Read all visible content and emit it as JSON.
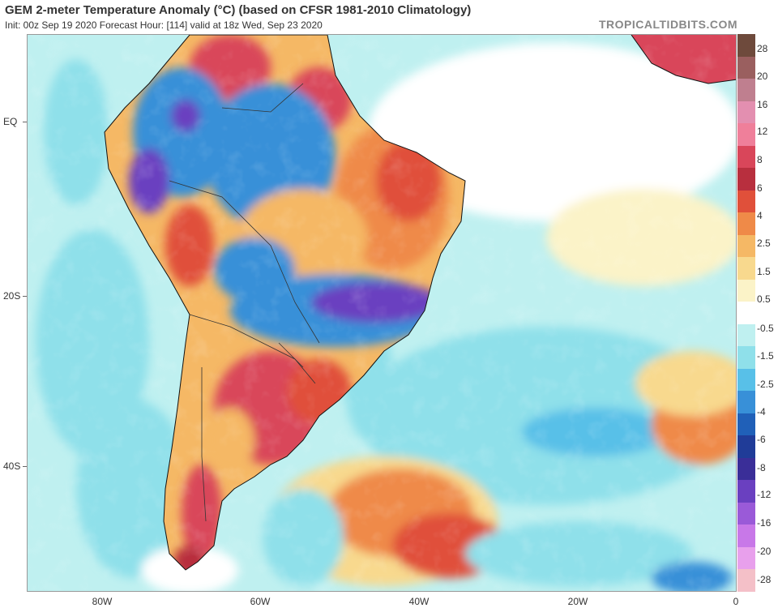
{
  "header": {
    "title": "GEM 2-meter Temperature Anomaly (°C) (based on CFSR 1981-2010 Climatology)",
    "subtitle": "Init: 00z Sep 19 2020   Forecast Hour: [114]   valid at 18z Wed, Sep 23 2020",
    "brand": "TROPICALTIDBITS.COM"
  },
  "axes": {
    "lat_labels": [
      "EQ",
      "20S",
      "40S"
    ],
    "lon_labels": [
      "80W",
      "60W",
      "40W",
      "20W",
      "0"
    ]
  },
  "colorbar": {
    "labels": [
      "28",
      "20",
      "16",
      "12",
      "8",
      "6",
      "4",
      "2.5",
      "1.5",
      "0.5",
      "-0.5",
      "-1.5",
      "-2.5",
      "-4",
      "-6",
      "-8",
      "-12",
      "-16",
      "-20",
      "-28"
    ],
    "colors": [
      "#6e4a3c",
      "#9a5f5f",
      "#bf7f8f",
      "#e38fb0",
      "#ef7f9a",
      "#d9465a",
      "#b82f3e",
      "#e0503a",
      "#ef8a48",
      "#f5b865",
      "#f8d98e",
      "#fbf3c8",
      "#ffffff",
      "#bff0f0",
      "#8fe0ea",
      "#58c0e8",
      "#3890d8",
      "#2060b8",
      "#203c98",
      "#3a2e98",
      "#6a40c0",
      "#9a5ad8",
      "#c878e8",
      "#e8a0ec",
      "#f4c0c8"
    ]
  },
  "colors": {
    "ocean_cool": "#8fe0ea",
    "ocean_pale": "#bff0f0",
    "warm_light": "#f8d98e",
    "warm": "#ef8a48",
    "hot": "#d9465a",
    "cold": "#3890d8",
    "very_cold": "#6a40c0"
  }
}
